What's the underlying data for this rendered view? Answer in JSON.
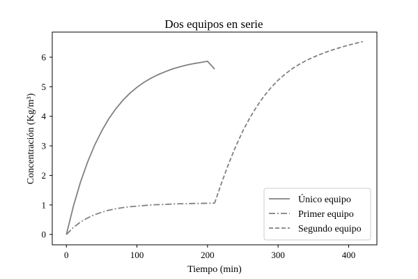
{
  "chart_data": {
    "type": "line",
    "title": "Dos equipos en serie",
    "xlabel": "Tiempo (min)",
    "ylabel": "Concentración (Kg/m³)",
    "xlim": [
      -20,
      440
    ],
    "ylim": [
      -0.35,
      6.85
    ],
    "xticks": [
      0,
      100,
      200,
      300,
      400
    ],
    "yticks": [
      0,
      1,
      2,
      3,
      4,
      5,
      6
    ],
    "grid": false,
    "legend_position": "lower-right",
    "series": [
      {
        "name": "Único equipo",
        "style": "solid",
        "color": "#808080",
        "x": [
          0,
          10,
          20,
          30,
          40,
          50,
          60,
          70,
          80,
          90,
          100,
          110,
          120,
          130,
          140,
          150,
          160,
          170,
          180,
          190,
          200,
          210
        ],
        "y": [
          0,
          0.96,
          1.77,
          2.45,
          3.02,
          3.5,
          3.91,
          4.25,
          4.54,
          4.78,
          4.98,
          5.15,
          5.29,
          5.41,
          5.51,
          5.6,
          5.67,
          5.73,
          5.78,
          5.82,
          5.86,
          5.6
        ]
      },
      {
        "name": "Primer equipo",
        "style": "dashdot",
        "color": "#808080",
        "x": [
          0,
          10,
          20,
          30,
          40,
          50,
          60,
          70,
          80,
          90,
          100,
          110,
          120,
          130,
          140,
          150,
          160,
          170,
          180,
          190,
          200,
          210
        ],
        "y": [
          0,
          0.24,
          0.42,
          0.56,
          0.67,
          0.75,
          0.82,
          0.87,
          0.91,
          0.94,
          0.96,
          0.98,
          1.0,
          1.01,
          1.02,
          1.03,
          1.04,
          1.04,
          1.05,
          1.05,
          1.06,
          1.06
        ]
      },
      {
        "name": "Segundo equipo",
        "style": "dashed",
        "color": "#808080",
        "x": [
          210,
          220,
          230,
          240,
          250,
          260,
          270,
          280,
          290,
          300,
          310,
          320,
          330,
          340,
          350,
          360,
          370,
          380,
          390,
          400,
          410,
          420
        ],
        "y": [
          1.06,
          1.75,
          2.4,
          2.98,
          3.5,
          3.95,
          4.34,
          4.68,
          4.97,
          5.22,
          5.43,
          5.61,
          5.76,
          5.89,
          6.0,
          6.1,
          6.19,
          6.27,
          6.34,
          6.41,
          6.47,
          6.53
        ]
      }
    ]
  }
}
